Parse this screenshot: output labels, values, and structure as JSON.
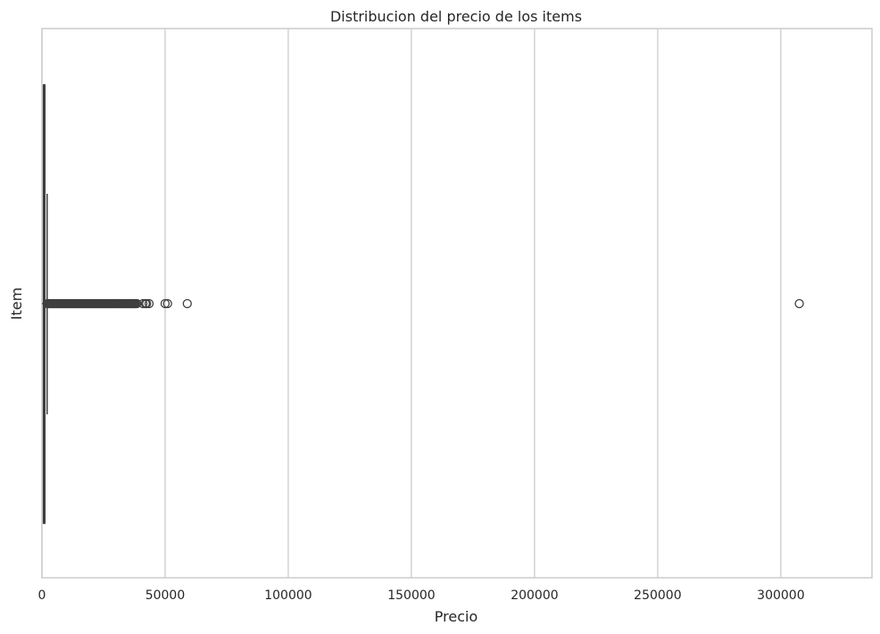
{
  "chart_data": {
    "type": "boxplot",
    "orientation": "horizontal",
    "title": "Distribucion del precio de los items",
    "xlabel": "Precio",
    "ylabel": "Item",
    "xlim": [
      0,
      337000
    ],
    "xticks": [
      0,
      50000,
      100000,
      150000,
      200000,
      250000,
      300000
    ],
    "xtick_labels": [
      "0",
      "50000",
      "100000",
      "150000",
      "200000",
      "250000",
      "300000"
    ],
    "grid": "vertical",
    "box": {
      "whisker_low": 0,
      "q1": 600,
      "median": 900,
      "q3": 1200,
      "whisker_high": 2100
    },
    "outliers_dense_range": [
      2300,
      38000
    ],
    "outliers": [
      38500,
      41000,
      42000,
      42500,
      43500,
      50000,
      51000,
      59000,
      307500
    ],
    "colors": {
      "grid": "#cccccc",
      "frame": "#cccccc",
      "box_line": "#3f3f3f",
      "text": "#262626"
    }
  }
}
